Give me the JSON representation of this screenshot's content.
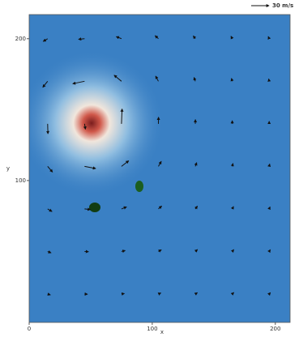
{
  "chart_data": {
    "type": "quiver",
    "xlabel": "x",
    "ylabel": "y",
    "xlim": [
      0,
      212
    ],
    "ylim": [
      0,
      217
    ],
    "xticks": [
      0,
      100,
      200
    ],
    "yticks": [
      100,
      200
    ],
    "key": {
      "value": 30,
      "label": "30 m/s"
    },
    "color": "#111111",
    "x": [
      15,
      45,
      75,
      105,
      135,
      165,
      195,
      15,
      45,
      75,
      105,
      135,
      165,
      195,
      15,
      45,
      75,
      105,
      135,
      165,
      195,
      15,
      45,
      75,
      105,
      135,
      165,
      195,
      15,
      45,
      75,
      105,
      135,
      165,
      195,
      15,
      45,
      75,
      105,
      135,
      165,
      195,
      15,
      45,
      75,
      105,
      135,
      165,
      195
    ],
    "y": [
      200,
      200,
      200,
      200,
      200,
      200,
      200,
      170,
      170,
      170,
      170,
      170,
      170,
      170,
      140,
      140,
      140,
      140,
      140,
      140,
      140,
      110,
      110,
      110,
      110,
      110,
      110,
      110,
      80,
      80,
      80,
      80,
      80,
      80,
      80,
      50,
      50,
      50,
      50,
      50,
      50,
      50,
      20,
      20,
      20,
      20,
      20,
      20,
      20
    ],
    "u": [
      -7.4,
      -10.1,
      -8.7,
      -5.5,
      -3.4,
      -2.1,
      -1.5,
      -8.1,
      -19.8,
      -12.3,
      -4.6,
      -2.2,
      -1.3,
      -0.8,
      0.5,
      1.5,
      1.0,
      0.2,
      0.1,
      0,
      0,
      8.2,
      18.7,
      12.1,
      4.8,
      2.3,
      1.3,
      0.9,
      7.3,
      9.7,
      8.5,
      5.5,
      3.4,
      2.2,
      1.5,
      5.7,
      6.6,
      6.2,
      4.9,
      3.6,
      2.6,
      1.9,
      4.6,
      4.9,
      4.8,
      4.1,
      3.4,
      2.6,
      2.1
    ],
    "v": [
      -4.5,
      -1.0,
      3.5,
      5.1,
      4.8,
      4.2,
      3.6,
      -10.1,
      -4.1,
      10.2,
      8.6,
      6.4,
      4.9,
      4.0,
      -16.7,
      -9,
      25.0,
      11.1,
      7.1,
      5.3,
      4.2,
      -9.6,
      -3.6,
      9.4,
      8.4,
      6.3,
      4.9,
      4.0,
      -4.3,
      -1.0,
      3.4,
      4.9,
      4.7,
      4.1,
      3.5,
      -2.3,
      -0.4,
      1.6,
      2.9,
      3.3,
      3.2,
      3.0,
      -1.4,
      -0.2,
      0.9,
      1.8,
      2.3,
      2.5,
      2.4
    ]
  }
}
